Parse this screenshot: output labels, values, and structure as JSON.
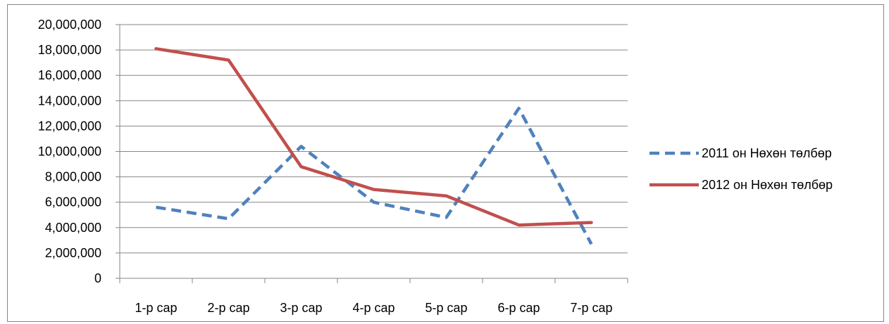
{
  "chart_data": {
    "type": "line",
    "title": "",
    "xlabel": "",
    "ylabel": "",
    "categories": [
      "1-р сар",
      "2-р сар",
      "3-р сар",
      "4-р сар",
      "5-р сар",
      "6-р сар",
      "7-р сар"
    ],
    "ylim": [
      0,
      20000000
    ],
    "ytick_step": 2000000,
    "yticks": [
      "0",
      "2,000,000",
      "4,000,000",
      "6,000,000",
      "8,000,000",
      "10,000,000",
      "12,000,000",
      "14,000,000",
      "16,000,000",
      "18,000,000",
      "20,000,000"
    ],
    "grid": true,
    "legend_position": "right",
    "series": [
      {
        "name": "2011 он Нөхөн төлбөр",
        "values": [
          5600000,
          4700000,
          10400000,
          6000000,
          4800000,
          13400000,
          2700000
        ],
        "color": "#4f81bd",
        "style": "dashed"
      },
      {
        "name": "2012 он Нөхөн төлбөр",
        "values": [
          18100000,
          17200000,
          8800000,
          7000000,
          6500000,
          4200000,
          4400000
        ],
        "color": "#c0504d",
        "style": "solid"
      }
    ]
  }
}
